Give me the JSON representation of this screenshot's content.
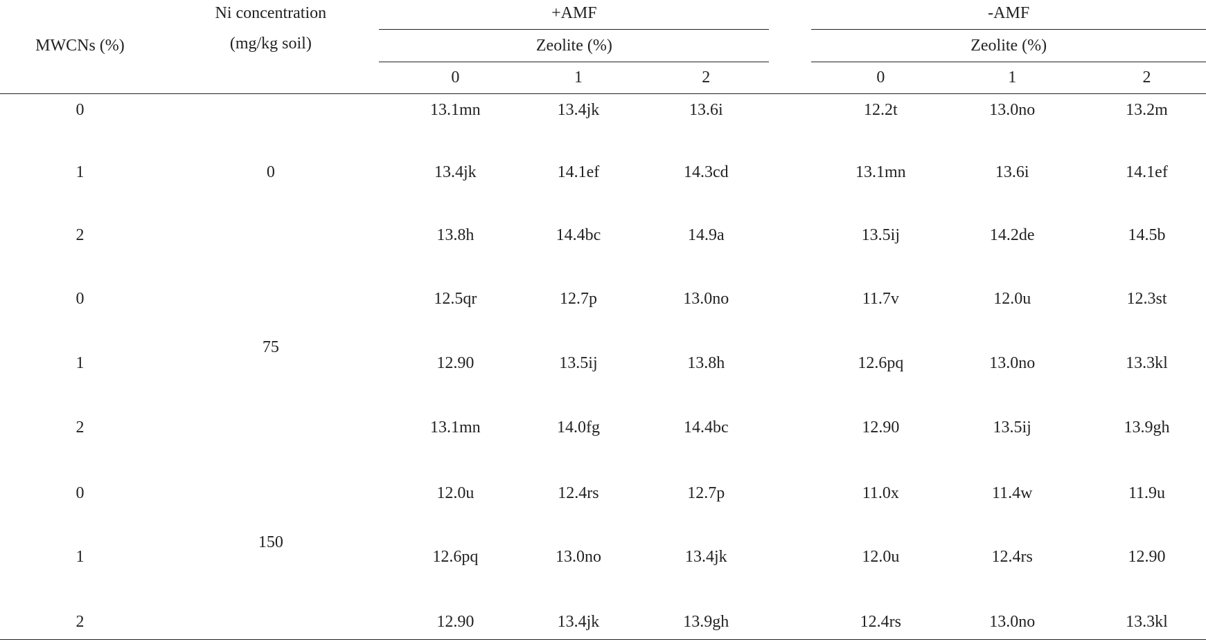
{
  "table": {
    "header": {
      "mwcns": "MWCNs (%)",
      "ni": [
        "Ni concentration",
        "(mg/kg soil)"
      ],
      "groups": [
        {
          "label": "+AMF",
          "sub": "Zeolite (%)",
          "levels": [
            "0",
            "1",
            "2"
          ]
        },
        {
          "label": "-AMF",
          "sub": "Zeolite (%)",
          "levels": [
            "0",
            "1",
            "2"
          ]
        }
      ]
    },
    "ni_groups": [
      "0",
      "75",
      "150"
    ],
    "rows": [
      {
        "mwcns": "0",
        "values": [
          "13.1mn",
          "13.4jk",
          "13.6i",
          "12.2t",
          "13.0no",
          "13.2m"
        ]
      },
      {
        "mwcns": "1",
        "values": [
          "13.4jk",
          "14.1ef",
          "14.3cd",
          "13.1mn",
          "13.6i",
          "14.1ef"
        ]
      },
      {
        "mwcns": "2",
        "values": [
          "13.8h",
          "14.4bc",
          "14.9a",
          "13.5ij",
          "14.2de",
          "14.5b"
        ]
      },
      {
        "mwcns": "0",
        "values": [
          "12.5qr",
          "12.7p",
          "13.0no",
          "11.7v",
          "12.0u",
          "12.3st"
        ]
      },
      {
        "mwcns": "1",
        "values": [
          "12.90",
          "13.5ij",
          "13.8h",
          "12.6pq",
          "13.0no",
          "13.3kl"
        ]
      },
      {
        "mwcns": "2",
        "values": [
          "13.1mn",
          "14.0fg",
          "14.4bc",
          "12.90",
          "13.5ij",
          "13.9gh"
        ]
      },
      {
        "mwcns": "0",
        "values": [
          "12.0u",
          "12.4rs",
          "12.7p",
          "11.0x",
          "11.4w",
          "11.9u"
        ]
      },
      {
        "mwcns": "1",
        "values": [
          "12.6pq",
          "13.0no",
          "13.4jk",
          "12.0u",
          "12.4rs",
          "12.90"
        ]
      },
      {
        "mwcns": "2",
        "values": [
          "12.90",
          "13.4jk",
          "13.9gh",
          "12.4rs",
          "13.0no",
          "13.3kl"
        ]
      }
    ]
  }
}
